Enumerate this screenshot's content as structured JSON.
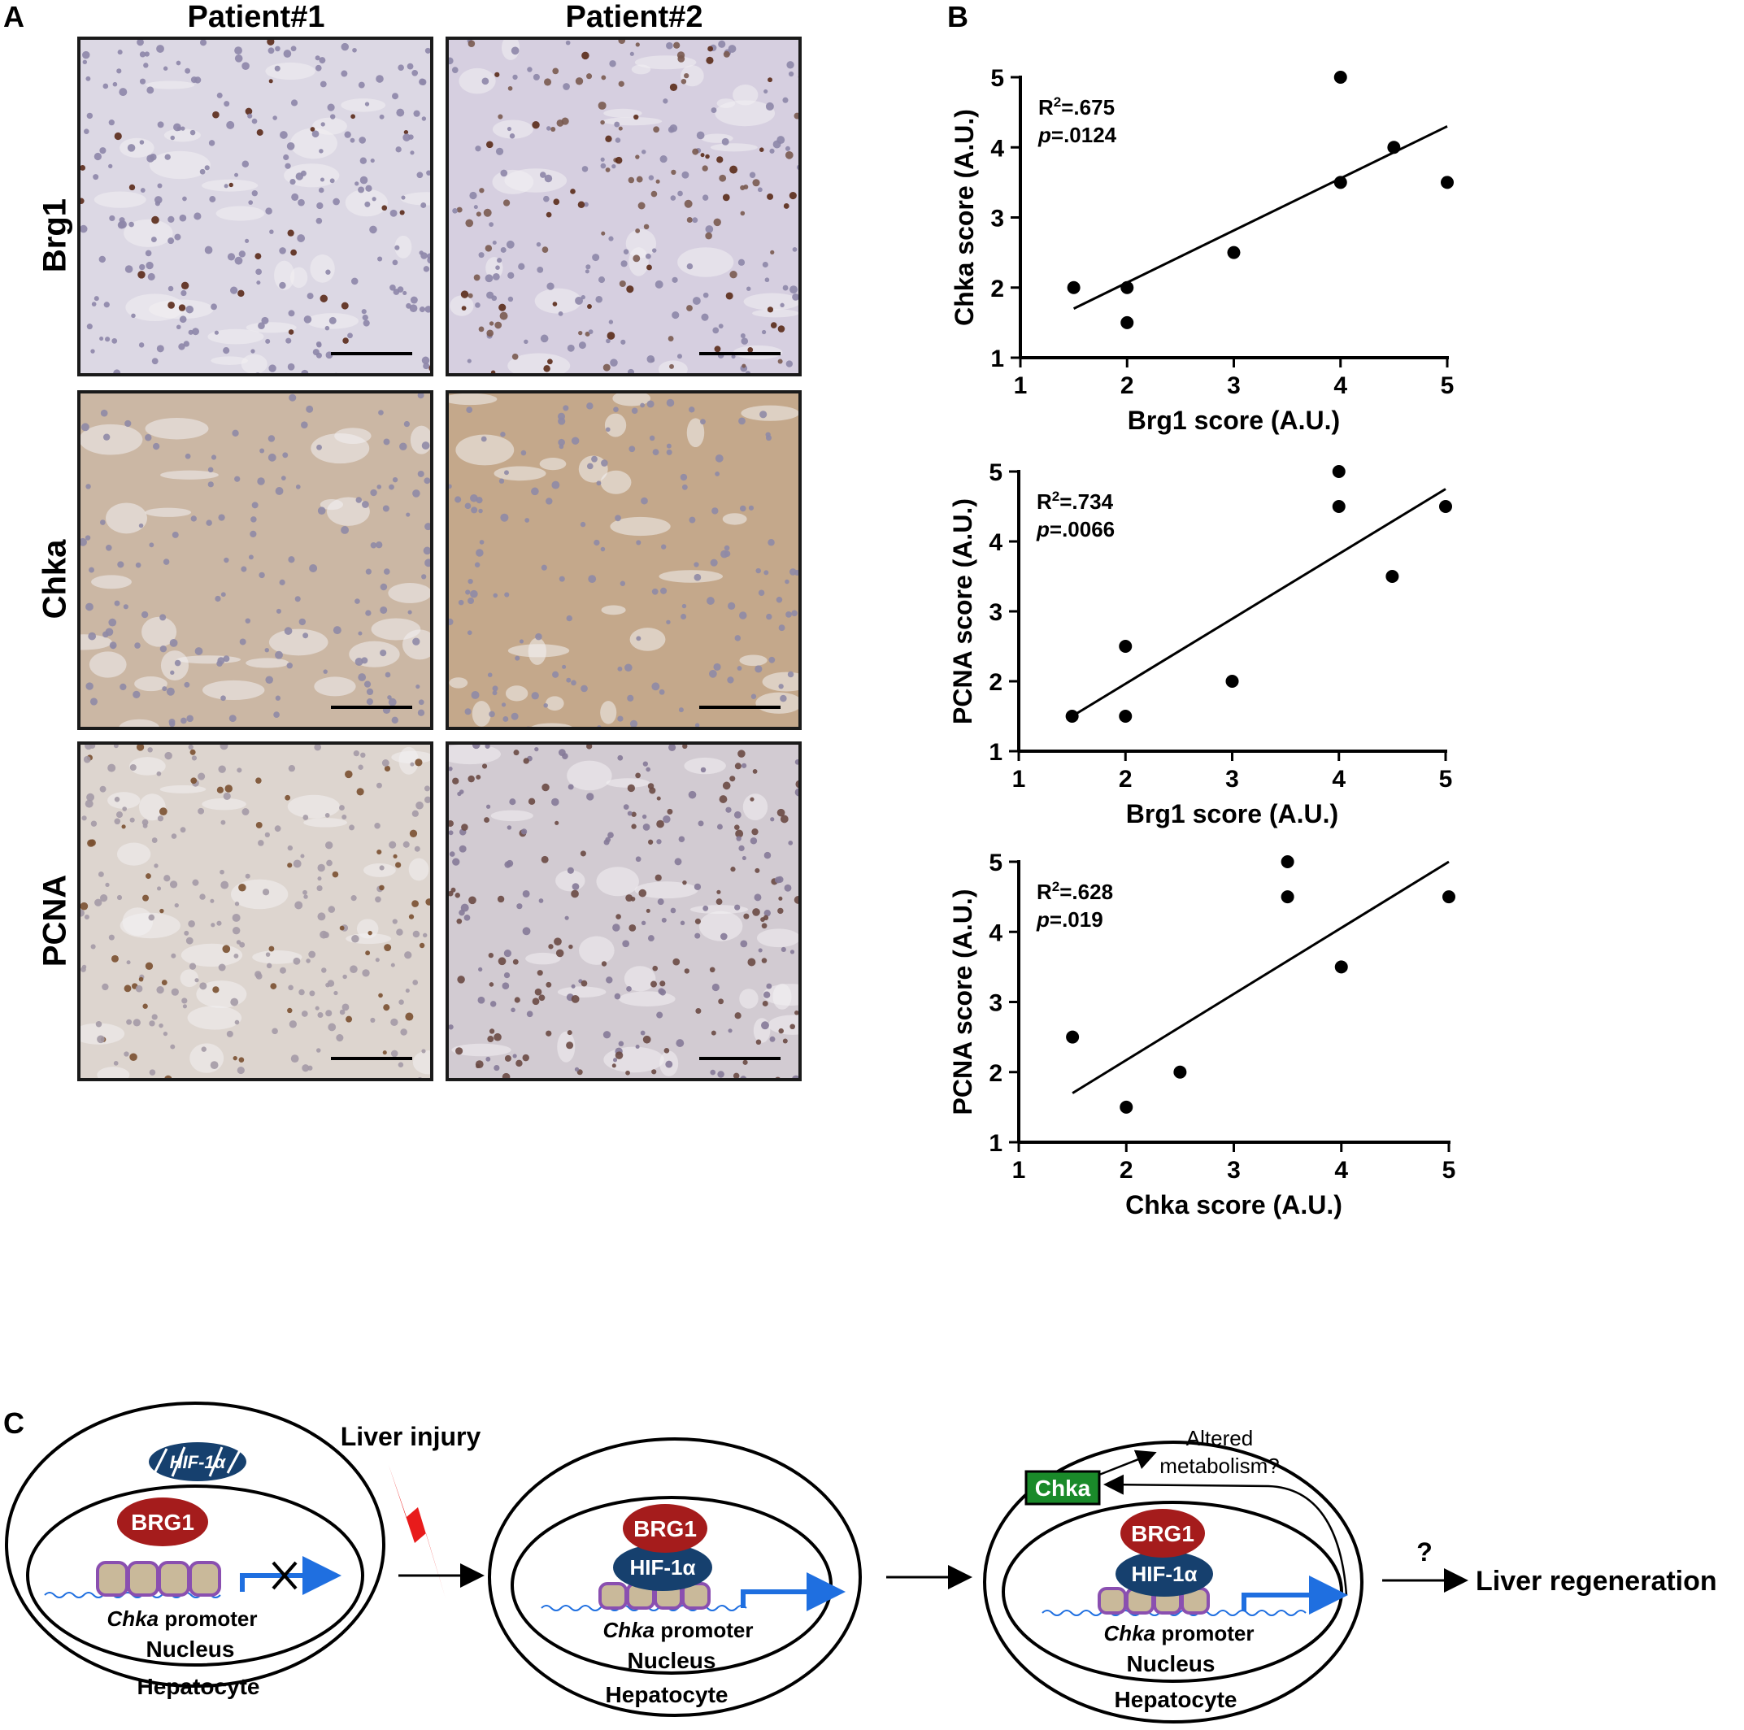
{
  "panel_a": {
    "letter": "A",
    "columns": [
      "Patient#1",
      "Patient#2"
    ],
    "rows": [
      "Brg1",
      "Chka",
      "PCNA"
    ]
  },
  "panel_b": {
    "letter": "B"
  },
  "panel_c": {
    "letter": "C",
    "liver_injury": "Liver injury",
    "hif_faded": "HIF-1α",
    "brg1": "BRG1",
    "hif": "HIF-1α",
    "promoter_gene": "Chka",
    "promoter_word": "promoter",
    "nucleus": "Nucleus",
    "hepatocyte": "Hepatocyte",
    "chka_box": "Chka",
    "altered_1": "Altered",
    "altered_2": "metabolism?",
    "question": "?",
    "regeneration": "Liver regeneration"
  },
  "colors": {
    "brg1": "#a51c1c",
    "hif": "#16406e",
    "chka_box": "#1a8a2a",
    "arrow_blue": "#1f6fe0",
    "lightning": "#e81b1b",
    "nucleosome": "#c9b99a",
    "nucleosome_border": "#8a4fb0",
    "brown_stain": "#b48a62"
  },
  "chart_data": [
    {
      "type": "scatter",
      "xlabel": "Brg1 score (A.U.)",
      "ylabel": "Chka score (A.U.)",
      "xlim": [
        1,
        5
      ],
      "ylim": [
        1,
        5
      ],
      "xticks": [
        1,
        2,
        3,
        4,
        5
      ],
      "yticks": [
        1,
        2,
        3,
        4,
        5
      ],
      "stat_r2": ".675",
      "stat_p": ".0124",
      "points": [
        [
          1.5,
          2.0
        ],
        [
          2.0,
          2.0
        ],
        [
          2.0,
          1.5
        ],
        [
          3.0,
          2.5
        ],
        [
          4.0,
          5.0
        ],
        [
          4.0,
          3.5
        ],
        [
          4.5,
          4.0
        ],
        [
          5.0,
          3.5
        ]
      ],
      "fit": [
        [
          1.5,
          1.7
        ],
        [
          5.0,
          4.3
        ]
      ]
    },
    {
      "type": "scatter",
      "xlabel": "Brg1 score (A.U.)",
      "ylabel": "PCNA score (A.U.)",
      "xlim": [
        1,
        5
      ],
      "ylim": [
        1,
        5
      ],
      "xticks": [
        1,
        2,
        3,
        4,
        5
      ],
      "yticks": [
        1,
        2,
        3,
        4,
        5
      ],
      "stat_r2": ".734",
      "stat_p": ".0066",
      "points": [
        [
          1.5,
          1.5
        ],
        [
          2.0,
          2.5
        ],
        [
          2.0,
          1.5
        ],
        [
          3.0,
          2.0
        ],
        [
          4.0,
          5.0
        ],
        [
          4.0,
          4.5
        ],
        [
          4.5,
          3.5
        ],
        [
          5.0,
          4.5
        ]
      ],
      "fit": [
        [
          1.5,
          1.5
        ],
        [
          5.0,
          4.75
        ]
      ]
    },
    {
      "type": "scatter",
      "xlabel": "Chka score (A.U.)",
      "ylabel": "PCNA score (A.U.)",
      "xlim": [
        1,
        5
      ],
      "ylim": [
        1,
        5
      ],
      "xticks": [
        1,
        2,
        3,
        4,
        5
      ],
      "yticks": [
        1,
        2,
        3,
        4,
        5
      ],
      "stat_r2": ".628",
      "stat_p": ".019",
      "points": [
        [
          1.5,
          2.5
        ],
        [
          2.0,
          1.5
        ],
        [
          2.5,
          2.0
        ],
        [
          3.5,
          5.0
        ],
        [
          3.5,
          4.5
        ],
        [
          4.0,
          3.5
        ],
        [
          5.0,
          4.5
        ]
      ],
      "fit": [
        [
          1.5,
          1.7
        ],
        [
          5.0,
          5.0
        ]
      ]
    }
  ]
}
